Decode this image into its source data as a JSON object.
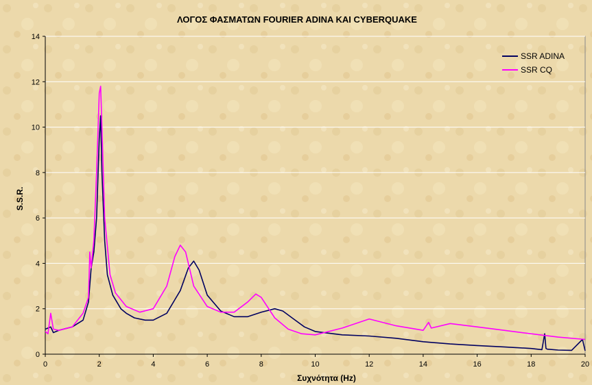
{
  "chart_data": {
    "type": "line",
    "title": "ΛΟΓΟΣ ΦΑΣΜΑΤΩΝ FOURIER ADINA ΚΑΙ CYBERQUAKE",
    "xlabel": "Συχνότητα (Hz)",
    "ylabel": "S.S.R.",
    "xlim": [
      0,
      20
    ],
    "ylim": [
      0,
      14
    ],
    "xticks": [
      0,
      2,
      4,
      6,
      8,
      10,
      12,
      14,
      16,
      18,
      20
    ],
    "yticks": [
      0,
      2,
      4,
      6,
      8,
      10,
      12,
      14
    ],
    "grid": "horizontal",
    "legend_position": "top-right",
    "series": [
      {
        "name": "SSR ADINA",
        "color": "#000060",
        "x": [
          0,
          0.2,
          0.3,
          0.5,
          1.0,
          1.4,
          1.6,
          1.7,
          1.8,
          1.9,
          2.0,
          2.05,
          2.1,
          2.2,
          2.3,
          2.5,
          2.8,
          3.0,
          3.3,
          3.7,
          4.0,
          4.5,
          5.0,
          5.3,
          5.5,
          5.7,
          6.0,
          6.5,
          7.0,
          7.5,
          8.0,
          8.5,
          8.8,
          9.2,
          9.6,
          10.0,
          11.0,
          12.0,
          13.0,
          14.0,
          15.0,
          16.0,
          17.0,
          18.0,
          18.4,
          18.5,
          18.55,
          18.6,
          19.0,
          19.5,
          19.9,
          20.0
        ],
        "y": [
          1.1,
          1.2,
          0.95,
          1.05,
          1.2,
          1.5,
          2.3,
          3.8,
          4.5,
          6.0,
          9.5,
          10.5,
          8.0,
          5.0,
          3.5,
          2.6,
          2.0,
          1.8,
          1.6,
          1.5,
          1.5,
          1.8,
          2.8,
          3.8,
          4.1,
          3.7,
          2.6,
          1.9,
          1.65,
          1.65,
          1.85,
          2.0,
          1.9,
          1.55,
          1.2,
          1.0,
          0.85,
          0.8,
          0.7,
          0.55,
          0.45,
          0.38,
          0.32,
          0.25,
          0.2,
          0.9,
          0.25,
          0.22,
          0.18,
          0.17,
          0.65,
          0.15
        ]
      },
      {
        "name": "SSR CQ",
        "color": "#ff00ff",
        "x": [
          0,
          0.1,
          0.2,
          0.3,
          0.5,
          1.0,
          1.4,
          1.6,
          1.65,
          1.7,
          1.8,
          1.9,
          2.0,
          2.05,
          2.1,
          2.2,
          2.4,
          2.6,
          3.0,
          3.5,
          4.0,
          4.5,
          4.8,
          5.0,
          5.2,
          5.5,
          6.0,
          6.5,
          7.0,
          7.5,
          7.8,
          8.0,
          8.5,
          9.0,
          9.5,
          10.0,
          11.0,
          12.0,
          13.0,
          14.0,
          14.2,
          14.3,
          15.0,
          16.0,
          17.0,
          18.0,
          19.0,
          20.0
        ],
        "y": [
          1.0,
          0.9,
          1.8,
          1.1,
          1.05,
          1.2,
          1.8,
          2.5,
          4.5,
          3.8,
          5.0,
          8.0,
          11.5,
          11.8,
          10.0,
          6.0,
          3.5,
          2.7,
          2.1,
          1.85,
          2.0,
          3.0,
          4.3,
          4.8,
          4.5,
          3.0,
          2.1,
          1.85,
          1.85,
          2.3,
          2.65,
          2.5,
          1.6,
          1.1,
          0.9,
          0.85,
          1.15,
          1.55,
          1.25,
          1.05,
          1.4,
          1.15,
          1.35,
          1.2,
          1.05,
          0.9,
          0.75,
          0.65
        ]
      }
    ]
  }
}
